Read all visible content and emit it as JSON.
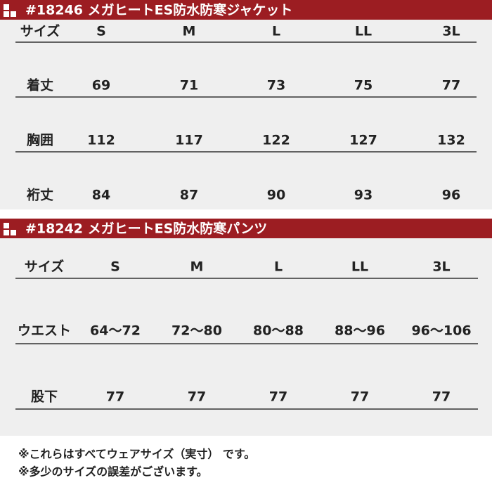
{
  "tables": [
    {
      "title": "#18246 メガヒートES防水防寒ジャケット",
      "header": [
        "サイズ",
        "S",
        "M",
        "L",
        "LL",
        "3L"
      ],
      "rows": [
        [
          "着丈",
          69,
          71,
          73,
          75,
          77
        ],
        [
          "胸囲",
          112,
          117,
          122,
          127,
          132
        ],
        [
          "裄丈",
          84,
          87,
          90,
          93,
          96
        ]
      ]
    },
    {
      "title": "#18242 メガヒートES防水防寒パンツ",
      "header": [
        "サイズ",
        "S",
        "M",
        "L",
        "LL",
        "3L"
      ],
      "rows": [
        [
          "ウエスト",
          "64〜72",
          "72〜80",
          "80〜88",
          "88〜96",
          "96〜106"
        ],
        [
          "股下",
          77,
          77,
          77,
          77,
          77
        ]
      ]
    }
  ],
  "notes": [
    "※これらはすべてウェアサイズ（実寸） です。",
    "※多少のサイズの誤差がございます。"
  ]
}
